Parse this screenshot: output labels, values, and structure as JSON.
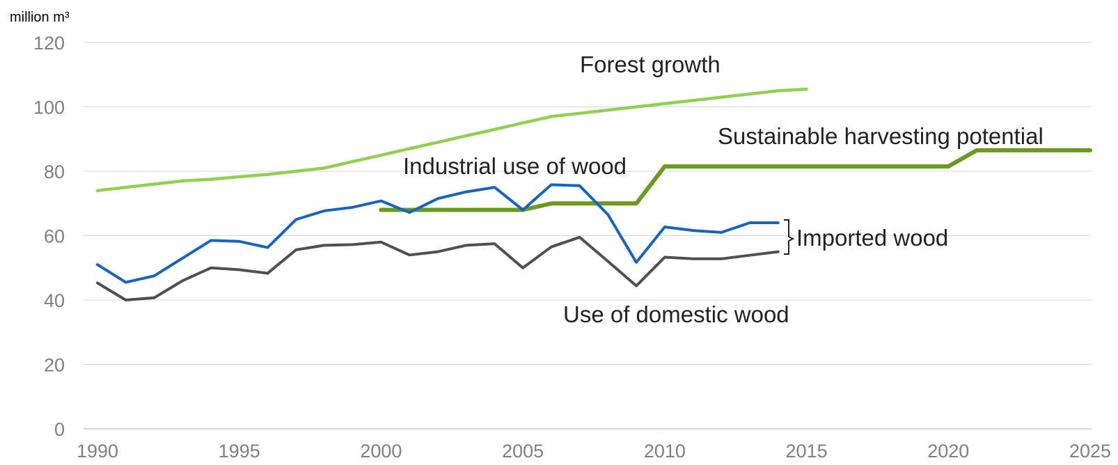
{
  "chart_data": {
    "type": "line",
    "ylabel": "million m³",
    "xlim": [
      1990,
      2025
    ],
    "ylim": [
      0,
      120
    ],
    "x_ticks": [
      "1990",
      "1995",
      "2000",
      "2005",
      "2010",
      "2015",
      "2020",
      "2025"
    ],
    "y_ticks": [
      "0",
      "20",
      "40",
      "60",
      "80",
      "100",
      "120"
    ],
    "grid": "horizontal",
    "series": [
      {
        "name": "Forest growth",
        "color": "#92d050",
        "x": [
          1990,
          1991,
          1992,
          1993,
          1994,
          1995,
          1996,
          1997,
          1998,
          1999,
          2000,
          2001,
          2002,
          2003,
          2004,
          2005,
          2006,
          2007,
          2008,
          2009,
          2010,
          2011,
          2012,
          2013,
          2014,
          2015
        ],
        "y": [
          74,
          75,
          76,
          77,
          77.5,
          78.3,
          79,
          80,
          81,
          83,
          85,
          87,
          89,
          91,
          93,
          95,
          97,
          98,
          99,
          100,
          101,
          102,
          103,
          104,
          105,
          105.5
        ]
      },
      {
        "name": "Sustainable harvesting potential",
        "color": "#6a9a1f",
        "x": [
          2000,
          2001,
          2002,
          2003,
          2004,
          2005,
          2006,
          2007,
          2008,
          2009,
          2010,
          2011,
          2012,
          2013,
          2014,
          2015,
          2016,
          2017,
          2018,
          2019,
          2020,
          2021,
          2022,
          2023,
          2024,
          2025
        ],
        "y": [
          68,
          68,
          68,
          68,
          68,
          68,
          70,
          70,
          70,
          70,
          81.5,
          81.5,
          81.5,
          81.5,
          81.5,
          81.5,
          81.5,
          81.5,
          81.5,
          81.5,
          81.5,
          86.5,
          86.5,
          86.5,
          86.5,
          86.5
        ]
      },
      {
        "name": "Industrial use of wood",
        "color": "#1565c0",
        "x": [
          1990,
          1991,
          1992,
          1993,
          1994,
          1995,
          1996,
          1997,
          1998,
          1999,
          2000,
          2001,
          2002,
          2003,
          2004,
          2005,
          2006,
          2007,
          2008,
          2009,
          2010,
          2011,
          2012,
          2013,
          2014
        ],
        "y": [
          51,
          45.5,
          47.5,
          53,
          58.5,
          58.2,
          56.3,
          65,
          67.7,
          68.8,
          70.8,
          67.2,
          71.5,
          73.6,
          75,
          68,
          75.8,
          75.5,
          66.5,
          51.7,
          62.7,
          61.6,
          61,
          64,
          64
        ]
      },
      {
        "name": "Use of domestic wood",
        "color": "#505050",
        "x": [
          1990,
          1991,
          1992,
          1993,
          1994,
          1995,
          1996,
          1997,
          1998,
          1999,
          2000,
          2001,
          2002,
          2003,
          2004,
          2005,
          2006,
          2007,
          2008,
          2009,
          2010,
          2011,
          2012,
          2013,
          2014
        ],
        "y": [
          45.3,
          40,
          40.7,
          46,
          50,
          49.4,
          48.3,
          55.6,
          57,
          57.2,
          58,
          54,
          55,
          57,
          57.5,
          50,
          56.5,
          59.5,
          52,
          44.4,
          53.3,
          52.8,
          52.8,
          53.9,
          55
        ]
      }
    ],
    "annotations": [
      {
        "text": "Forest growth",
        "series": "Forest growth"
      },
      {
        "text": "Sustainable harvesting potential",
        "series": "Sustainable harvesting potential"
      },
      {
        "text": "Industrial use of wood",
        "series": "Industrial use of wood"
      },
      {
        "text": "Use of domestic wood",
        "series": "Use of domestic wood"
      },
      {
        "text": "Imported wood",
        "series": ""
      }
    ]
  }
}
